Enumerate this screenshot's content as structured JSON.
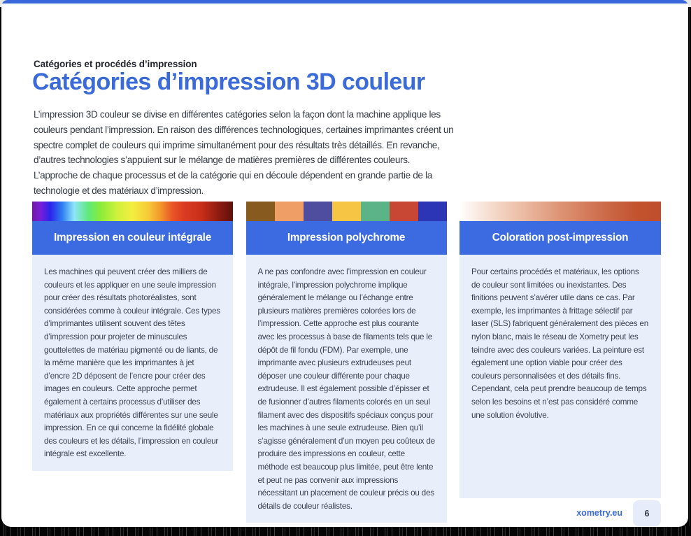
{
  "page": {
    "eyebrow": "Catégories et procédés d’impression",
    "title": "Catégories d’impression 3D couleur",
    "intro": "L’impression 3D couleur se divise en différentes catégories selon la façon dont la machine applique les couleurs pendant l’impression. En raison des différences technologiques, certaines imprimantes créent un spectre complet de couleurs qui imprime simultanément pour des résultats très détaillés. En revanche, d’autres technologies s’appuient sur le mélange de matières premières de différentes couleurs. L’approche de chaque processus et de la catégorie qui en découle dépendent en grande partie de la technologie et des matériaux d’impression."
  },
  "cards": [
    {
      "title": "Impression en couleur intégrale",
      "body": "Les machines qui peuvent créer des milliers de couleurs et les appliquer en une seule impression pour créer des résultats photoréalistes, sont considérées comme à couleur intégrale. Ces types d’imprimantes utilisent souvent des têtes d’impression pour projeter de minuscules gouttelettes de matériau pigmenté ou de liants, de la même manière que les imprimantes à jet d’encre 2D déposent de l’encre pour créer des images en couleurs. Cette approche permet également à certains processus d’utiliser des matériaux aux propriétés différentes sur une seule impression. En ce qui concerne la fidélité globale des couleurs et les détails, l’impression en couleur intégrale est excellente.",
      "swatch_gradient": [
        "#6E1BA1 0%",
        "#7A1FD6 4%",
        "#2B24EA 9%",
        "#2F7FF2 15%",
        "#8FE6F8 21%",
        "#5FE87A 28%",
        "#8AEB3A 34%",
        "#CDF13C 42%",
        "#F4EE40 50%",
        "#F6C936 58%",
        "#F3962C 64%",
        "#E85427 70%",
        "#DA3A22 76%",
        "#C93019 84%",
        "#8C1B10 93%",
        "#5F100A 100%"
      ]
    },
    {
      "title": "Impression polychrome",
      "body": "A ne pas confondre avec l’impression en couleur intégrale, l’impression polychrome implique généralement le mélange ou l’échange entre plusieurs matières premières colorées lors de l’impression. Cette approche est plus courante avec les processus à base de filaments tels que le dépôt de fil fondu (FDM). Par exemple, une imprimante avec plusieurs extrudeuses peut déposer une couleur différente pour chaque extrudeuse. Il est également possible d’épisser et de fusionner d’autres filaments colorés en un seul filament avec des dispositifs spéciaux conçus pour les machines à une seule extrudeuse. Bien qu’il s’agisse généralement d’un moyen peu coûteux de produire des impressions en couleur, cette méthode est beaucoup plus limitée, peut être lente et peut ne pas convenir aux impressions nécessitant un placement de couleur précis ou des détails de couleur réalistes.",
      "swatch_colors": [
        "#875A1F",
        "#EF9F66",
        "#4F4D9E",
        "#F5C543",
        "#5BB487",
        "#C84734",
        "#2C35B5"
      ]
    },
    {
      "title": "Coloration post-impression",
      "body": "Pour certains procédés et matériaux, les options de couleur sont limitées ou inexistantes. Des finitions peuvent s’avérer utile dans ce cas. Par exemple, les imprimantes à frittage sélectif par laser (SLS) fabriquent généralement des pièces en nylon blanc, mais le réseau de Xometry peut les teindre avec des couleurs variées. La peinture est également une option viable pour créer des couleurs personnalisées et des détails fins. Cependant, cela peut prendre beaucoup de temps selon les besoins et n’est pas considéré comme une solution évolutive.",
      "swatch_gradient": [
        "#FFFFFF 0%",
        "#F7E3D8 12%",
        "#EDC3AC 28%",
        "#DD9475 50%",
        "#CC6B4A 72%",
        "#C2532F 88%",
        "#BF4E2C 100%"
      ]
    }
  ],
  "footer": {
    "site": "xometry.eu",
    "page_number": "6"
  },
  "colors": {
    "accent_blue": "#3B6BD9",
    "header_blue": "#3C6AE1",
    "top_bar_blue": "#3A66DB",
    "card_body_bg": "#E9EEFB",
    "badge_bg": "#E6ECF9"
  }
}
